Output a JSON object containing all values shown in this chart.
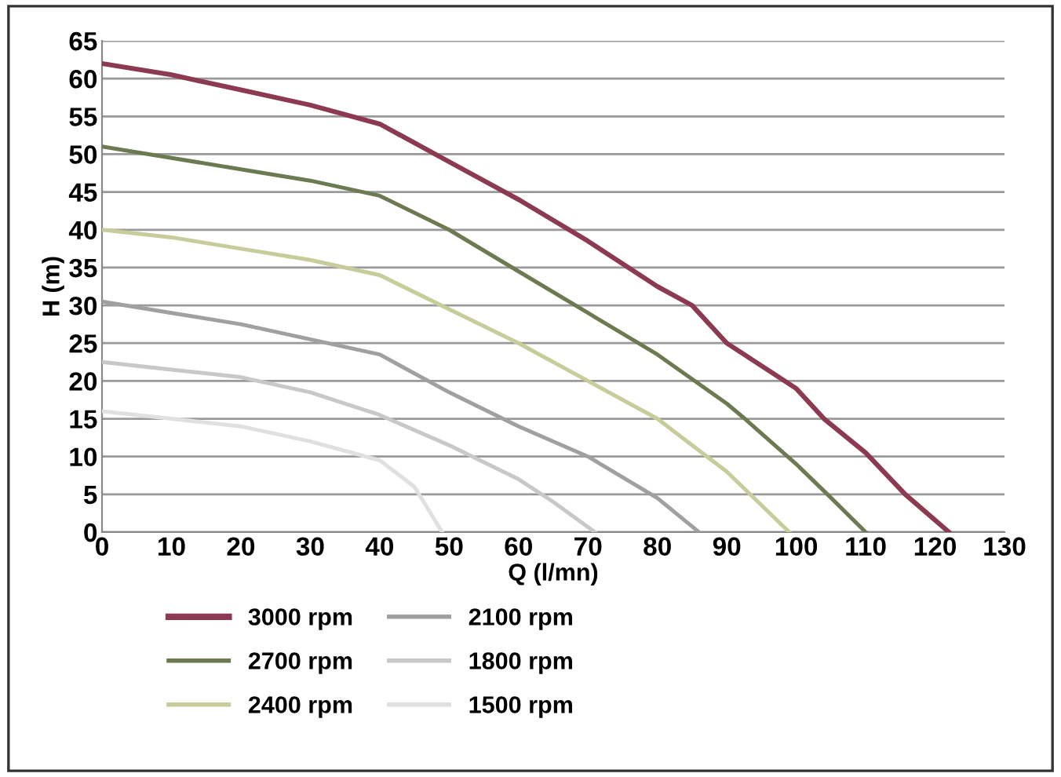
{
  "chart_data": {
    "type": "line",
    "xlabel": "Q (l/mn)",
    "ylabel": "H (m)",
    "xlim": [
      0,
      130
    ],
    "xticks": [
      0,
      10,
      20,
      30,
      40,
      50,
      60,
      70,
      80,
      90,
      100,
      110,
      120,
      130
    ],
    "ylim": [
      0,
      65
    ],
    "yticks": [
      0,
      5,
      10,
      15,
      20,
      25,
      30,
      35,
      40,
      45,
      50,
      55,
      60,
      65
    ],
    "grid": "y",
    "legend": "bottom",
    "marker": "none",
    "line_style": "solid",
    "series": [
      {
        "name": "3000 rpm",
        "color": "#8b3a52",
        "x": [
          0,
          10,
          20,
          30,
          40,
          50,
          60,
          70,
          80,
          85,
          90,
          100,
          104,
          110,
          115.7,
          122
        ],
        "values": [
          62,
          60.5,
          58.5,
          56.5,
          54,
          49,
          44,
          38.5,
          32.5,
          30,
          25,
          19,
          15,
          10.5,
          5,
          0
        ]
      },
      {
        "name": "2700 rpm",
        "color": "#6b7a50",
        "x": [
          0,
          10,
          20,
          30,
          40,
          50,
          60,
          70,
          80,
          90,
          92.6,
          100,
          104.5,
          110
        ],
        "values": [
          51,
          49.5,
          48,
          46.5,
          44.5,
          40,
          34.5,
          29,
          23.5,
          17,
          15,
          9,
          5,
          0
        ]
      },
      {
        "name": "2400 rpm",
        "color": "#c8cc9a",
        "x": [
          0,
          10,
          20,
          30,
          40,
          50,
          60,
          70,
          80,
          90,
          99
        ],
        "values": [
          40,
          39,
          37.5,
          36,
          34,
          29.5,
          25,
          20,
          15,
          8,
          0
        ]
      },
      {
        "name": "2100 rpm",
        "color": "#a0a0a0",
        "x": [
          0,
          10,
          20,
          30,
          40,
          50,
          60,
          70,
          80,
          86
        ],
        "values": [
          30.5,
          29,
          27.5,
          25.5,
          23.5,
          18.5,
          14,
          10,
          4.5,
          0
        ]
      },
      {
        "name": "1800 rpm",
        "color": "#c8c8c8",
        "x": [
          0,
          10,
          20,
          30,
          40,
          50,
          60,
          65,
          71
        ],
        "values": [
          22.5,
          21.5,
          20.5,
          18.5,
          15.5,
          11.5,
          7,
          4,
          0
        ]
      },
      {
        "name": "1500 rpm",
        "color": "#e0e0e0",
        "x": [
          0,
          10,
          20,
          30,
          40,
          45,
          49
        ],
        "values": [
          16,
          15,
          14,
          12,
          9.5,
          6,
          0
        ]
      }
    ]
  }
}
